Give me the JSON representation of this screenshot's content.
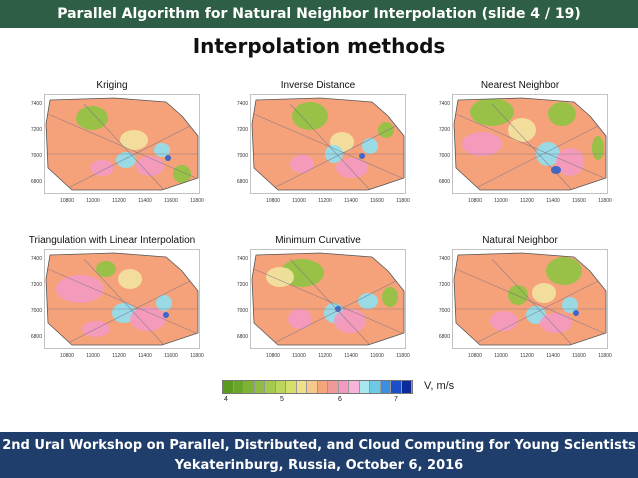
{
  "header": {
    "title": "Parallel Algorithm for Natural Neighbor Interpolation (slide 4 / 19)"
  },
  "slide": {
    "title": "Interpolation methods"
  },
  "panels": [
    {
      "title": "Kriging"
    },
    {
      "title": "Inverse Distance"
    },
    {
      "title": "Nearest Neighbor"
    },
    {
      "title": "Triangulation with Linear Interpolation"
    },
    {
      "title": "Minimum Curvative"
    },
    {
      "title": "Natural Neighbor"
    }
  ],
  "axes": {
    "y_ticks": [
      "7400",
      "7200",
      "7000",
      "6800"
    ],
    "x_ticks": [
      "10800",
      "11000",
      "11200",
      "11400",
      "11600",
      "11800"
    ]
  },
  "legend": {
    "unit": "V, m/s",
    "ticks": [
      "4",
      "5",
      "6",
      "7"
    ],
    "colors": [
      "#5a9a1f",
      "#6aa52a",
      "#7db235",
      "#8fbd42",
      "#a4c94f",
      "#bcd65c",
      "#d5e06a",
      "#f0e08a",
      "#f6c98a",
      "#f4a57a",
      "#ef9a9a",
      "#f49ac2",
      "#f7b6d9",
      "#a8e6f0",
      "#6cc9e8",
      "#3c8fe0",
      "#1a4fc9",
      "#0d2a9a"
    ]
  },
  "colors": {
    "top_bar": "#2e5f46",
    "bottom_bar": "#1f3e6b",
    "orange": "#f5a27a",
    "pink": "#f49ac2",
    "green": "#8fc441",
    "yellow": "#f3e3a0",
    "cyan": "#8fe0ef",
    "blue": "#2a60d0"
  },
  "footer": {
    "line1": "2nd Ural Workshop on Parallel, Distributed, and Cloud Computing for Young Scientists",
    "line2": "Yekaterinburg, Russia, October 6, 2016"
  }
}
